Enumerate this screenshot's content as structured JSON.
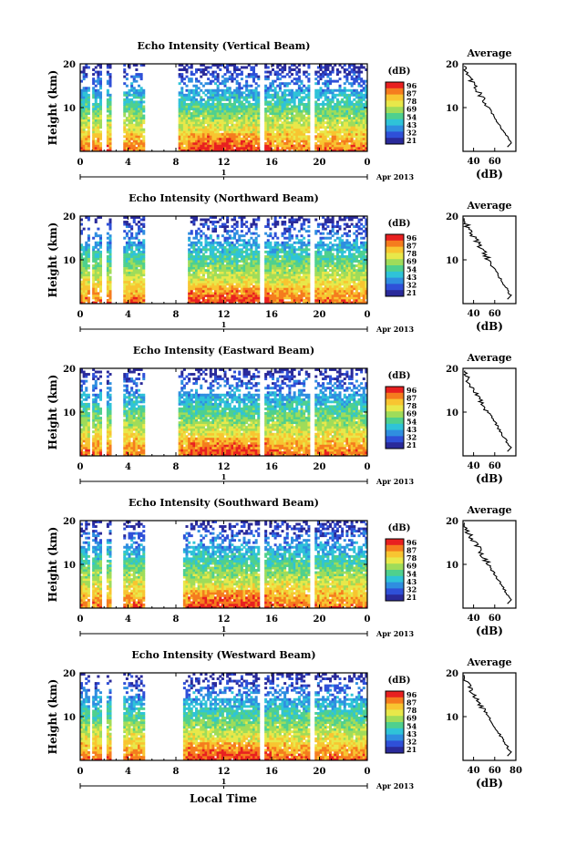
{
  "figure": {
    "xlabel": "Local Time"
  },
  "colorbar": {
    "unit": "(dB)",
    "tick_labels": [
      "96",
      "87",
      "78",
      "69",
      "54",
      "43",
      "32",
      "21"
    ],
    "colors": [
      "#e82020",
      "#f57c1e",
      "#f8c531",
      "#e8e84a",
      "#9fdc5a",
      "#4fd08e",
      "#2fc3d8",
      "#2f8ee0",
      "#2f50d8",
      "#2a2a9a"
    ]
  },
  "chart_data": [
    {
      "type": "heatmap",
      "title": "Echo Intensity (Vertical Beam)",
      "ylabel": "Height (km)",
      "ylim": [
        0,
        20
      ],
      "yticks": [
        "20",
        "10"
      ],
      "xlim": [
        0,
        24
      ],
      "xticks": [
        "0",
        "4",
        "8",
        "12",
        "16",
        "20",
        "0"
      ],
      "day_label": "1",
      "date_label": "Apr 2013",
      "gaps": [
        [
          0.75,
          0.95
        ],
        [
          1.9,
          2.1
        ],
        [
          2.7,
          3.6
        ],
        [
          5.5,
          8.2
        ],
        [
          15.1,
          15.4
        ],
        [
          19.1,
          19.5
        ]
      ],
      "profile": {
        "title": "Average",
        "xlabel": "(dB)",
        "xticks": [
          "40",
          "60"
        ],
        "yticks": [
          "20",
          "10"
        ]
      }
    },
    {
      "type": "heatmap",
      "title": "Echo Intensity (Northward Beam)",
      "ylabel": "Height (km)",
      "ylim": [
        0,
        20
      ],
      "yticks": [
        "20",
        "10"
      ],
      "xlim": [
        0,
        24
      ],
      "xticks": [
        "0",
        "4",
        "8",
        "12",
        "16",
        "20",
        "0"
      ],
      "day_label": "1",
      "date_label": "Apr 2013",
      "gaps": [
        [
          0.75,
          0.95
        ],
        [
          1.9,
          2.1
        ],
        [
          2.7,
          3.6
        ],
        [
          5.5,
          8.9
        ],
        [
          15.1,
          15.4
        ],
        [
          19.1,
          19.5
        ]
      ],
      "profile": {
        "title": "Average",
        "xlabel": "(dB)",
        "xticks": [
          "40",
          "60"
        ],
        "yticks": [
          "20",
          "10"
        ]
      }
    },
    {
      "type": "heatmap",
      "title": "Echo Intensity (Eastward Beam)",
      "ylabel": "Height (km)",
      "ylim": [
        0,
        20
      ],
      "yticks": [
        "20",
        "10"
      ],
      "xlim": [
        0,
        24
      ],
      "xticks": [
        "0",
        "4",
        "8",
        "12",
        "16",
        "20",
        "0"
      ],
      "day_label": "1",
      "date_label": "Apr 2013",
      "gaps": [
        [
          0.75,
          0.95
        ],
        [
          1.9,
          2.1
        ],
        [
          2.7,
          3.6
        ],
        [
          5.5,
          8.2
        ],
        [
          15.1,
          15.4
        ],
        [
          19.1,
          19.5
        ]
      ],
      "profile": {
        "title": "Average",
        "xlabel": "(dB)",
        "xticks": [
          "40",
          "60"
        ],
        "yticks": [
          "20",
          "10"
        ]
      }
    },
    {
      "type": "heatmap",
      "title": "Echo Intensity (Southward Beam)",
      "ylabel": "Height (km)",
      "ylim": [
        0,
        20
      ],
      "yticks": [
        "20",
        "10"
      ],
      "xlim": [
        0,
        24
      ],
      "xticks": [
        "0",
        "4",
        "8",
        "12",
        "16",
        "20",
        "0"
      ],
      "day_label": "1",
      "date_label": "Apr 2013",
      "gaps": [
        [
          0.75,
          0.95
        ],
        [
          1.9,
          2.1
        ],
        [
          2.7,
          3.6
        ],
        [
          5.5,
          8.6
        ],
        [
          15.1,
          15.4
        ],
        [
          19.1,
          19.5
        ]
      ],
      "profile": {
        "title": "Average",
        "xlabel": "(dB)",
        "xticks": [
          "40",
          "60"
        ],
        "yticks": [
          "20",
          "10"
        ]
      }
    },
    {
      "type": "heatmap",
      "title": "Echo Intensity (Westward Beam)",
      "ylabel": "Height (km)",
      "ylim": [
        0,
        20
      ],
      "yticks": [
        "20",
        "10"
      ],
      "xlim": [
        0,
        24
      ],
      "xticks": [
        "0",
        "4",
        "8",
        "12",
        "16",
        "20",
        "0"
      ],
      "day_label": "1",
      "date_label": "Apr 2013",
      "gaps": [
        [
          0.75,
          0.95
        ],
        [
          1.9,
          2.1
        ],
        [
          2.7,
          3.6
        ],
        [
          5.5,
          8.6
        ],
        [
          15.1,
          15.4
        ],
        [
          19.1,
          19.5
        ]
      ],
      "profile": {
        "title": "Average",
        "xlabel": "(dB)",
        "xticks": [
          "40",
          "60",
          "80"
        ],
        "yticks": [
          "20",
          "10"
        ]
      }
    }
  ]
}
